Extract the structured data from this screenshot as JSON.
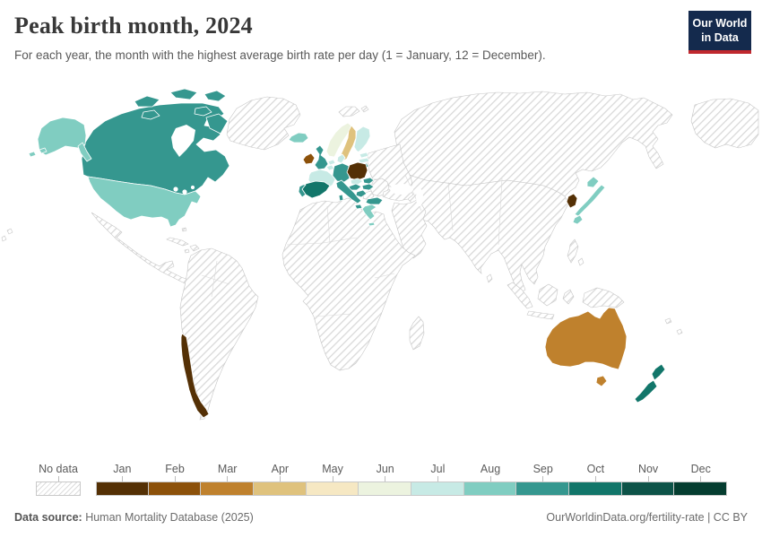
{
  "header": {
    "title": "Peak birth month, 2024",
    "subtitle": "For each year, the month with the highest average birth rate per day (1 = January, 12 = December).",
    "logo": {
      "line1": "Our World",
      "line2": "in Data",
      "bg": "#142a4d",
      "accent": "#c0282e"
    }
  },
  "legend": {
    "no_data_label": "No data",
    "months": [
      "Jan",
      "Feb",
      "Mar",
      "Apr",
      "May",
      "Jun",
      "Jul",
      "Aug",
      "Sep",
      "Oct",
      "Nov",
      "Dec"
    ],
    "colors": [
      "#543005",
      "#8c510a",
      "#bf812d",
      "#dfc27d",
      "#f6e8c3",
      "#ecf3df",
      "#c7eae5",
      "#80cdc1",
      "#35978f",
      "#12766a",
      "#0d5348",
      "#053d30"
    ]
  },
  "footer": {
    "source_label": "Data source:",
    "source_value": " Human Mortality Database (2025)",
    "right": "OurWorldinData.org/fertility-rate | CC BY"
  },
  "chart_data": {
    "type": "heatmap",
    "subtype": "choropleth-world-map",
    "title": "Peak birth month, 2024",
    "unit": "month of year (1 = January, 12 = December)",
    "no_data_style": "hatched",
    "countries": {
      "Canada": 9,
      "United States": 8,
      "Chile": 1,
      "Iceland": 8,
      "Ireland": 2,
      "United Kingdom": 9,
      "Norway": 6,
      "Sweden": 4,
      "Finland": 7,
      "Denmark": 7,
      "Estonia": 7,
      "Latvia": 7,
      "Lithuania": 9,
      "Netherlands": 7,
      "Belgium": 7,
      "France": 7,
      "Switzerland": 5,
      "Germany": 9,
      "Poland": 1,
      "Czechia": 7,
      "Austria": 9,
      "Slovakia": 9,
      "Hungary": 9,
      "Croatia": 9,
      "Italy": 9,
      "Portugal": 9,
      "Spain": 10,
      "Greece": 8,
      "Bulgaria": 9,
      "South Korea": 1,
      "Japan": 8,
      "Australia": 3,
      "New Zealand": 10
    }
  }
}
